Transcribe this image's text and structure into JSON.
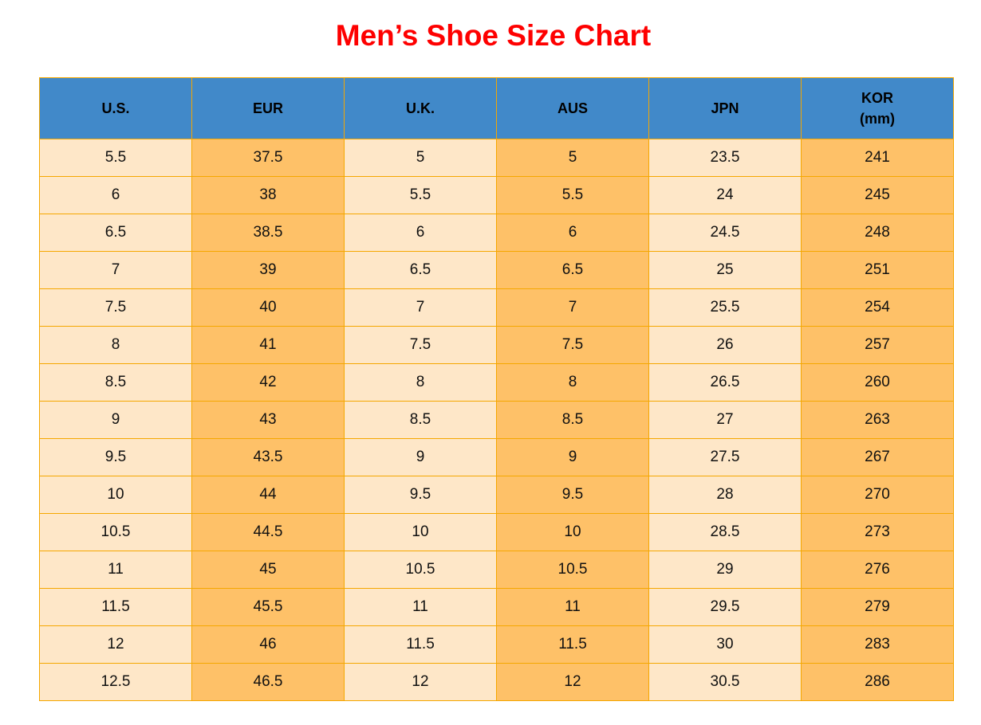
{
  "title": "Men’s Shoe Size Chart",
  "colors": {
    "title": "#fe0000",
    "header": "#4189c9",
    "light_column": "#fee7c8",
    "dark_column": "#fec168",
    "border": "#f5a700"
  },
  "table": {
    "headers": [
      [
        "U.S."
      ],
      [
        "EUR"
      ],
      [
        "U.K."
      ],
      [
        "AUS"
      ],
      [
        "JPN"
      ],
      [
        "KOR",
        "(mm)"
      ]
    ],
    "rows": [
      [
        "5.5",
        "37.5",
        "5",
        "5",
        "23.5",
        "241"
      ],
      [
        "6",
        "38",
        "5.5",
        "5.5",
        "24",
        "245"
      ],
      [
        "6.5",
        "38.5",
        "6",
        "6",
        "24.5",
        "248"
      ],
      [
        "7",
        "39",
        "6.5",
        "6.5",
        "25",
        "251"
      ],
      [
        "7.5",
        "40",
        "7",
        "7",
        "25.5",
        "254"
      ],
      [
        "8",
        "41",
        "7.5",
        "7.5",
        "26",
        "257"
      ],
      [
        "8.5",
        "42",
        "8",
        "8",
        "26.5",
        "260"
      ],
      [
        "9",
        "43",
        "8.5",
        "8.5",
        "27",
        "263"
      ],
      [
        "9.5",
        "43.5",
        "9",
        "9",
        "27.5",
        "267"
      ],
      [
        "10",
        "44",
        "9.5",
        "9.5",
        "28",
        "270"
      ],
      [
        "10.5",
        "44.5",
        "10",
        "10",
        "28.5",
        "273"
      ],
      [
        "11",
        "45",
        "10.5",
        "10.5",
        "29",
        "276"
      ],
      [
        "11.5",
        "45.5",
        "11",
        "11",
        "29.5",
        "279"
      ],
      [
        "12",
        "46",
        "11.5",
        "11.5",
        "30",
        "283"
      ],
      [
        "12.5",
        "46.5",
        "12",
        "12",
        "30.5",
        "286"
      ]
    ]
  }
}
